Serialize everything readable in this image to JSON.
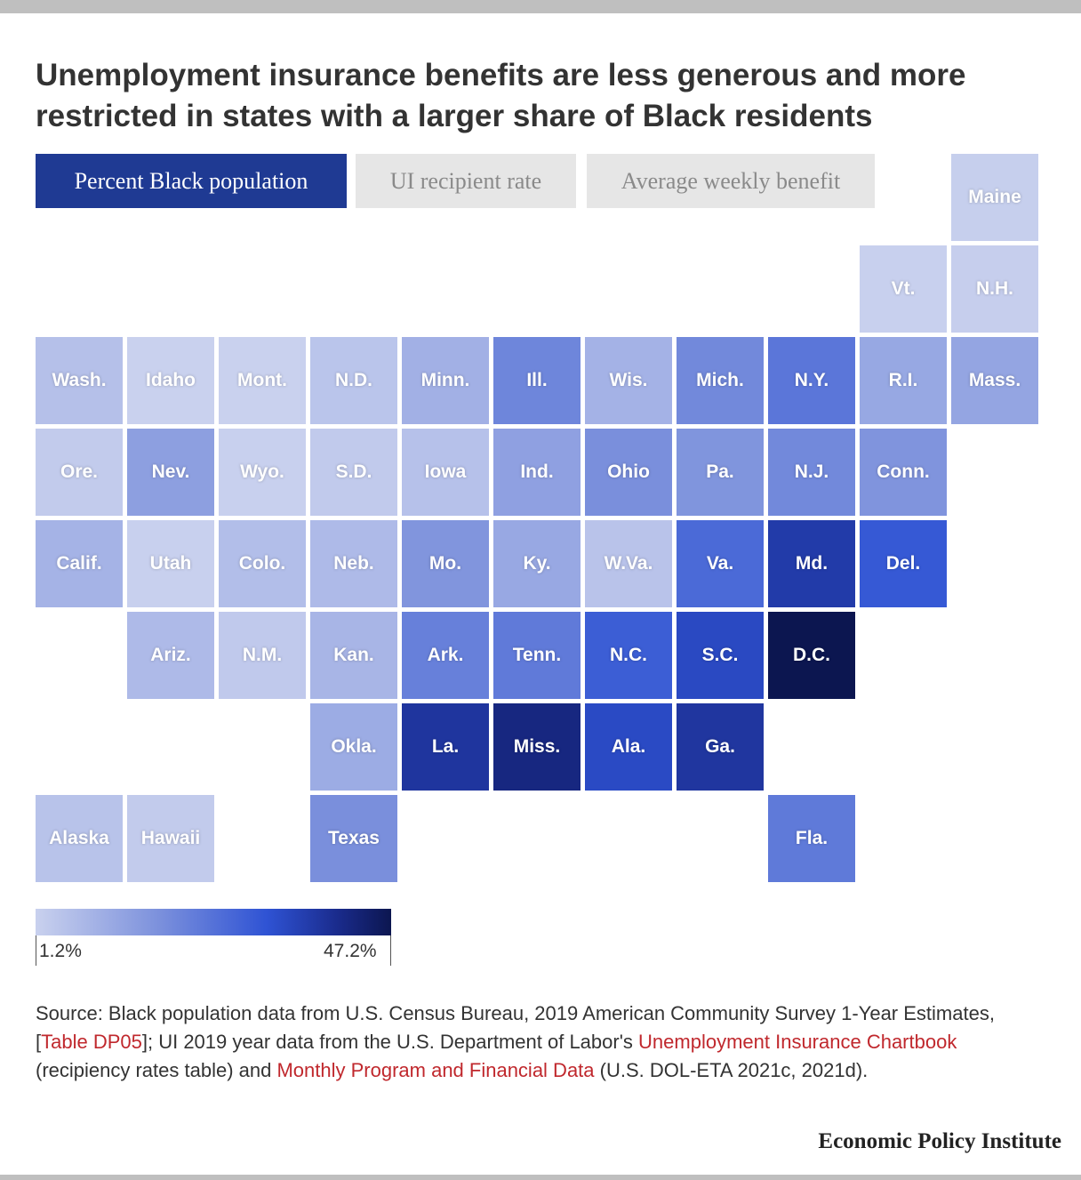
{
  "title": "Unemployment insurance benefits are less generous and more restricted in states with a larger share of Black residents",
  "tabs": [
    {
      "label": "Percent Black population",
      "active": true
    },
    {
      "label": "UI recipient rate",
      "active": false
    },
    {
      "label": "Average weekly benefit",
      "active": false
    }
  ],
  "colors": {
    "tab_active": "#1f3a93",
    "tab_inactive": "#e6e6e6",
    "scale": [
      "#c9d1ee",
      "#7b90dc",
      "#2f53d4",
      "#1a2b8c",
      "#0c1650"
    ],
    "link": "#c0282d"
  },
  "legend": {
    "min_label": "1.2%",
    "max_label": "47.2%",
    "min": 1.2,
    "max": 47.2
  },
  "chart_data": {
    "type": "heatmap",
    "variable": "Percent Black population",
    "value_range": [
      1.2,
      47.2
    ],
    "states": [
      {
        "label": "Maine",
        "row": 0,
        "col": 10,
        "value": 1.6
      },
      {
        "label": "Vt.",
        "row": 1,
        "col": 9,
        "value": 1.3
      },
      {
        "label": "N.H.",
        "row": 1,
        "col": 10,
        "value": 1.7
      },
      {
        "label": "Wash.",
        "row": 2,
        "col": 0,
        "value": 4.2
      },
      {
        "label": "Idaho",
        "row": 2,
        "col": 1,
        "value": 1.2
      },
      {
        "label": "Mont.",
        "row": 2,
        "col": 2,
        "value": 1.2
      },
      {
        "label": "N.D.",
        "row": 2,
        "col": 3,
        "value": 3.4
      },
      {
        "label": "Minn.",
        "row": 2,
        "col": 4,
        "value": 7.0
      },
      {
        "label": "Ill.",
        "row": 2,
        "col": 5,
        "value": 14.6
      },
      {
        "label": "Wis.",
        "row": 2,
        "col": 6,
        "value": 6.6
      },
      {
        "label": "Mich.",
        "row": 2,
        "col": 7,
        "value": 14.1
      },
      {
        "label": "N.Y.",
        "row": 2,
        "col": 8,
        "value": 17.6
      },
      {
        "label": "R.I.",
        "row": 2,
        "col": 9,
        "value": 8.5
      },
      {
        "label": "Mass.",
        "row": 2,
        "col": 10,
        "value": 9.0
      },
      {
        "label": "Ore.",
        "row": 3,
        "col": 0,
        "value": 2.2
      },
      {
        "label": "Nev.",
        "row": 3,
        "col": 1,
        "value": 10.0
      },
      {
        "label": "Wyo.",
        "row": 3,
        "col": 2,
        "value": 1.4
      },
      {
        "label": "S.D.",
        "row": 3,
        "col": 3,
        "value": 2.4
      },
      {
        "label": "Iowa",
        "row": 3,
        "col": 4,
        "value": 4.0
      },
      {
        "label": "Ind.",
        "row": 3,
        "col": 5,
        "value": 9.8
      },
      {
        "label": "Ohio",
        "row": 3,
        "col": 6,
        "value": 12.9
      },
      {
        "label": "Pa.",
        "row": 3,
        "col": 7,
        "value": 11.9
      },
      {
        "label": "N.J.",
        "row": 3,
        "col": 8,
        "value": 14.1
      },
      {
        "label": "Conn.",
        "row": 3,
        "col": 9,
        "value": 12.0
      },
      {
        "label": "Calif.",
        "row": 4,
        "col": 0,
        "value": 6.5
      },
      {
        "label": "Utah",
        "row": 4,
        "col": 1,
        "value": 1.4
      },
      {
        "label": "Colo.",
        "row": 4,
        "col": 2,
        "value": 4.6
      },
      {
        "label": "Neb.",
        "row": 4,
        "col": 3,
        "value": 5.2
      },
      {
        "label": "Mo.",
        "row": 4,
        "col": 4,
        "value": 11.8
      },
      {
        "label": "Ky.",
        "row": 4,
        "col": 5,
        "value": 8.4
      },
      {
        "label": "W.Va.",
        "row": 4,
        "col": 6,
        "value": 3.6
      },
      {
        "label": "Va.",
        "row": 4,
        "col": 7,
        "value": 19.9
      },
      {
        "label": "Md.",
        "row": 4,
        "col": 8,
        "value": 31.1
      },
      {
        "label": "Del.",
        "row": 4,
        "col": 9,
        "value": 23.1
      },
      {
        "label": "Ariz.",
        "row": 5,
        "col": 1,
        "value": 5.2
      },
      {
        "label": "N.M.",
        "row": 5,
        "col": 2,
        "value": 2.6
      },
      {
        "label": "Kan.",
        "row": 5,
        "col": 3,
        "value": 6.1
      },
      {
        "label": "Ark.",
        "row": 5,
        "col": 4,
        "value": 15.7
      },
      {
        "label": "Tenn.",
        "row": 5,
        "col": 5,
        "value": 16.8
      },
      {
        "label": "N.C.",
        "row": 5,
        "col": 6,
        "value": 22.2
      },
      {
        "label": "S.C.",
        "row": 5,
        "col": 7,
        "value": 27.1
      },
      {
        "label": "D.C.",
        "row": 5,
        "col": 8,
        "value": 47.2
      },
      {
        "label": "Okla.",
        "row": 6,
        "col": 3,
        "value": 7.8
      },
      {
        "label": "La.",
        "row": 6,
        "col": 4,
        "value": 32.8
      },
      {
        "label": "Miss.",
        "row": 6,
        "col": 5,
        "value": 38.0
      },
      {
        "label": "Ala.",
        "row": 6,
        "col": 6,
        "value": 26.8
      },
      {
        "label": "Ga.",
        "row": 6,
        "col": 7,
        "value": 32.6
      },
      {
        "label": "Alaska",
        "row": 7,
        "col": 0,
        "value": 3.7
      },
      {
        "label": "Hawaii",
        "row": 7,
        "col": 1,
        "value": 2.2
      },
      {
        "label": "Texas",
        "row": 7,
        "col": 3,
        "value": 12.9
      },
      {
        "label": "Fla.",
        "row": 7,
        "col": 8,
        "value": 16.9
      }
    ]
  },
  "source": {
    "part1": "Source: Black population data from U.S. Census Bureau, 2019 American Community Survey 1-Year Estimates, [",
    "link1": "Table DP05",
    "part2": "]; UI 2019 year data from the U.S. Department of Labor's ",
    "link2": "Unemployment Insurance Chartbook",
    "part3": " (recipiency rates table) and ",
    "link3": "Monthly Program and Financial Data",
    "part4": " (U.S. DOL-ETA 2021c, 2021d)."
  },
  "brand": "Economic Policy Institute"
}
